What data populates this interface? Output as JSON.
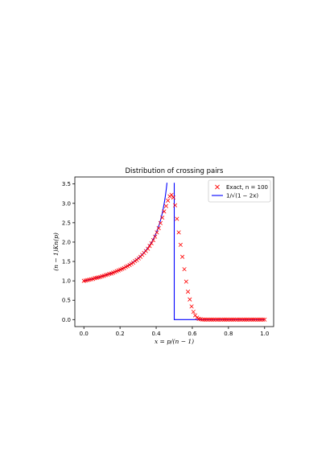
{
  "chart_data": {
    "type": "line",
    "title": "Distribution of crossing pairs",
    "xlabel": "x = p/(n − 1)",
    "ylabel": "(n − 1)Kn(p)",
    "xlim": [
      -0.05,
      1.05
    ],
    "ylim": [
      -0.18,
      3.68
    ],
    "x_ticks": [
      "0.0",
      "0.2",
      "0.4",
      "0.6",
      "0.8",
      "1.0"
    ],
    "y_ticks": [
      "0.0",
      "0.5",
      "1.0",
      "1.5",
      "2.0",
      "2.5",
      "3.0",
      "3.5"
    ],
    "grid": false,
    "legend": "top-right",
    "series": [
      {
        "name": "Exact, n = 100",
        "kind": "scatter",
        "marker": "x",
        "color": "#ff0000",
        "x": [
          0.0,
          0.01,
          0.02,
          0.03,
          0.04,
          0.051,
          0.061,
          0.071,
          0.081,
          0.091,
          0.101,
          0.111,
          0.121,
          0.131,
          0.141,
          0.152,
          0.162,
          0.172,
          0.182,
          0.192,
          0.202,
          0.212,
          0.222,
          0.232,
          0.242,
          0.253,
          0.263,
          0.273,
          0.283,
          0.293,
          0.303,
          0.313,
          0.323,
          0.333,
          0.343,
          0.354,
          0.364,
          0.374,
          0.384,
          0.394,
          0.404,
          0.414,
          0.424,
          0.434,
          0.444,
          0.455,
          0.465,
          0.475,
          0.485,
          0.495,
          0.505,
          0.515,
          0.525,
          0.535,
          0.545,
          0.556,
          0.566,
          0.576,
          0.586,
          0.596,
          0.606,
          0.616,
          0.626,
          0.636,
          0.646,
          0.657,
          0.667,
          0.677,
          0.687,
          0.697,
          0.707,
          0.717,
          0.727,
          0.737,
          0.747,
          0.758,
          0.768,
          0.778,
          0.788,
          0.798,
          0.808,
          0.818,
          0.828,
          0.838,
          0.848,
          0.859,
          0.869,
          0.879,
          0.889,
          0.899,
          0.909,
          0.919,
          0.929,
          0.939,
          0.949,
          0.96,
          0.97,
          0.98,
          0.99,
          1.0
        ],
        "y": [
          1.0,
          1.01,
          1.02,
          1.03,
          1.04,
          1.05,
          1.07,
          1.08,
          1.09,
          1.1,
          1.12,
          1.13,
          1.15,
          1.16,
          1.18,
          1.19,
          1.21,
          1.23,
          1.25,
          1.27,
          1.29,
          1.31,
          1.33,
          1.36,
          1.38,
          1.41,
          1.44,
          1.47,
          1.51,
          1.54,
          1.58,
          1.62,
          1.67,
          1.72,
          1.77,
          1.83,
          1.9,
          1.97,
          2.05,
          2.14,
          2.25,
          2.36,
          2.49,
          2.63,
          2.79,
          2.93,
          3.07,
          3.18,
          3.22,
          3.15,
          2.95,
          2.6,
          2.25,
          1.93,
          1.62,
          1.3,
          0.98,
          0.72,
          0.52,
          0.34,
          0.2,
          0.11,
          0.05,
          0.02,
          0.01,
          0.0,
          0.0,
          0.0,
          0.0,
          0.0,
          0.0,
          0.0,
          0.0,
          0.0,
          0.0,
          0.0,
          0.0,
          0.0,
          0.0,
          0.0,
          0.0,
          0.0,
          0.0,
          0.0,
          0.0,
          0.0,
          0.0,
          0.0,
          0.0,
          0.0,
          0.0,
          0.0,
          0.0,
          0.0,
          0.0,
          0.0,
          0.0,
          0.0,
          0.0,
          0.0
        ]
      },
      {
        "name": "1/√(1 − 2x)",
        "kind": "line",
        "color": "#0000ff",
        "formula": "1/sqrt(1-2x) for x < 0.5, then 0"
      }
    ]
  }
}
